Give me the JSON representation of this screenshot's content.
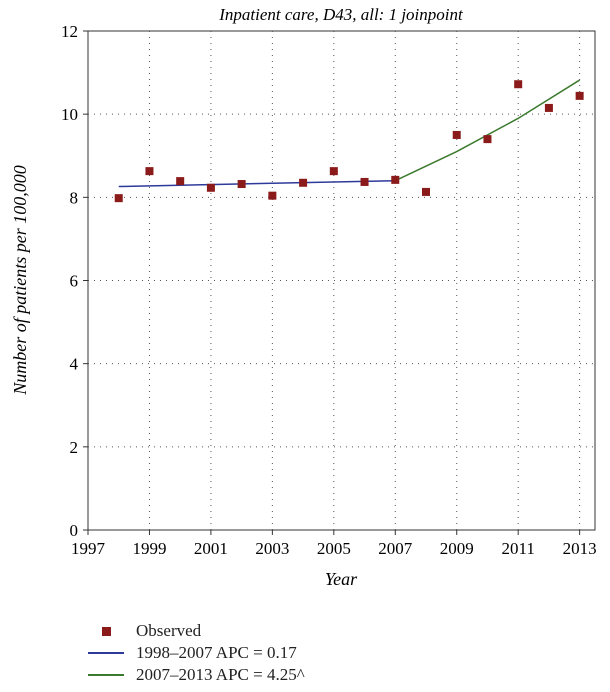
{
  "chart_data": {
    "type": "scatter",
    "title": "Inpatient care, D43, all: 1 joinpoint",
    "xlabel": "Year",
    "ylabel": "Number of patients per 100,000",
    "xlim": [
      1997,
      2013.5
    ],
    "ylim": [
      0,
      12
    ],
    "xticks": [
      1997,
      1999,
      2001,
      2003,
      2005,
      2007,
      2009,
      2011,
      2013
    ],
    "yticks": [
      0,
      2,
      4,
      6,
      8,
      10,
      12
    ],
    "grid": "dotted",
    "observed": {
      "name": "Observed",
      "color": "#8b1a1a",
      "x": [
        1998,
        1999,
        2000,
        2001,
        2002,
        2003,
        2004,
        2005,
        2006,
        2007,
        2008,
        2009,
        2010,
        2011,
        2012,
        2013
      ],
      "y": [
        7.98,
        8.63,
        8.39,
        8.23,
        8.32,
        8.04,
        8.35,
        8.63,
        8.37,
        8.42,
        8.13,
        9.5,
        9.4,
        10.72,
        10.15,
        10.44
      ]
    },
    "trends": [
      {
        "name": "1998–2007 APC = 0.17",
        "color": "#2e3a9a",
        "x": [
          1998,
          2007
        ],
        "y": [
          8.26,
          8.4
        ]
      },
      {
        "name": "2007–2013 APC = 4.25^",
        "color": "#3c7a2e",
        "x": [
          2007,
          2009,
          2011,
          2013
        ],
        "y": [
          8.4,
          9.1,
          9.9,
          10.82
        ]
      }
    ],
    "legend_position": "bottom-left"
  }
}
